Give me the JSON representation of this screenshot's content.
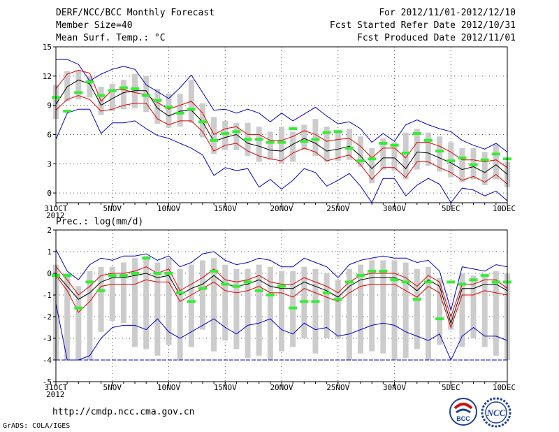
{
  "header": {
    "title": "DERF/NCC/BCC Monthly Forecast",
    "member_size": "Member Size=40",
    "variable": "Mean Surf. Temp.: °C",
    "period": "For 2012/11/01-2012/12/10",
    "start_date": "Fcst Started Refer Date 2012/10/31",
    "produced_date": "Fcst Produced Date 2012/11/01"
  },
  "footer": {
    "url": "http://cmdp.ncc.cma.gov.cn",
    "grads": "GrADS: COLA/IGES",
    "logo_bcc": "BCC",
    "logo_ncc": "NCC"
  },
  "colors": {
    "max_min": "#0000cc",
    "percentile": "#dd0000",
    "mean": "#000000",
    "box": "#cccccc",
    "marker": "#33ee33",
    "grid": "#555555"
  },
  "chart_data": [
    {
      "type": "box-ensemble",
      "title": "Mean Surf. Temp.: °C",
      "ylim": [
        -1,
        15
      ],
      "yticks": [
        0,
        3,
        6,
        9,
        12,
        15
      ],
      "xlim": [
        1,
        41
      ],
      "x_ticks": [
        {
          "day": 1,
          "label": "31OCT",
          "sub": "2012"
        },
        {
          "day": 6,
          "label": "5NOV"
        },
        {
          "day": 11,
          "label": "10NOV"
        },
        {
          "day": 16,
          "label": "15NOV"
        },
        {
          "day": 21,
          "label": "20NOV"
        },
        {
          "day": 26,
          "label": "25NOV"
        },
        {
          "day": 31,
          "label": "30NOV"
        },
        {
          "day": 36,
          "label": "5DEC"
        },
        {
          "day": 41,
          "label": "10DEC"
        }
      ],
      "series": {
        "max": [
          null,
          13.7,
          13.7,
          13.2,
          11.5,
          12.2,
          12.7,
          13,
          12.7,
          11.1,
          10.4,
          9.7,
          10.8,
          12.1,
          10.3,
          8.5,
          8.6,
          8.2,
          8.6,
          8.2,
          7.3,
          8.2,
          7.4,
          8.1,
          8.8,
          7.9,
          7.1,
          7.3,
          6.6,
          5.2,
          6.1,
          5.3,
          7.0,
          7.5,
          7.0,
          6.6,
          6.3,
          5.4,
          4.9,
          4.5,
          5.1,
          4.2
        ],
        "p_high": [
          null,
          10.7,
          12.2,
          12.6,
          12.3,
          9.4,
          10.6,
          10.6,
          10.3,
          10.1,
          9.3,
          8.6,
          9.0,
          9.4,
          8.2,
          6.0,
          6.6,
          6.8,
          6.0,
          6.0,
          5.4,
          5.4,
          5.8,
          6.4,
          6.0,
          5.3,
          5.5,
          5.6,
          4.8,
          3.6,
          4.6,
          4.6,
          3.6,
          5.2,
          5.2,
          4.8,
          4.2,
          3.4,
          3.4,
          3.2,
          3.4,
          2.6
        ],
        "mean": [
          null,
          9.1,
          10.9,
          11.6,
          11.2,
          9.0,
          9.7,
          10.3,
          10.5,
          10.5,
          8.7,
          7.9,
          8.4,
          8.5,
          7.3,
          5.3,
          5.7,
          6.0,
          5.1,
          4.8,
          4.4,
          4.3,
          5.0,
          5.6,
          5.1,
          4.3,
          4.5,
          4.8,
          3.8,
          2.5,
          3.6,
          3.6,
          2.5,
          4.2,
          4.1,
          3.6,
          3.1,
          2.4,
          2.7,
          2.1,
          2.9,
          1.9
        ],
        "p_low": [
          null,
          8.5,
          9.6,
          10.0,
          9.6,
          8.4,
          8.6,
          9.0,
          9.2,
          9.2,
          7.6,
          7.0,
          7.4,
          7.4,
          6.3,
          4.3,
          4.9,
          5.1,
          4.3,
          3.8,
          3.5,
          3.3,
          4.1,
          4.6,
          4.2,
          3.3,
          3.6,
          3.9,
          2.9,
          1.4,
          2.6,
          2.6,
          1.6,
          3.2,
          3.2,
          2.6,
          2.1,
          1.3,
          1.7,
          1.1,
          1.9,
          0.9
        ],
        "min": [
          null,
          5.5,
          8.2,
          8.6,
          8.6,
          6.1,
          7.2,
          7.2,
          7.4,
          6.6,
          5.9,
          5.6,
          5.1,
          4.6,
          3.9,
          1.8,
          2.6,
          2.3,
          2.5,
          0.6,
          1.4,
          0.4,
          1.3,
          2.5,
          2.1,
          0.7,
          1.3,
          2.0,
          0.7,
          -1.0,
          1.5,
          1.5,
          -0.3,
          0.8,
          1.5,
          0.9,
          -1.0,
          0.5,
          0.3,
          -0.3,
          0.2,
          -0.8
        ],
        "box_top": [
          null,
          11.1,
          12.5,
          12.6,
          12.0,
          10.9,
          11.2,
          11.6,
          12.2,
          12.0,
          10.7,
          10.2,
          10.2,
          11.6,
          9.2,
          7.8,
          7.4,
          7.2,
          7.2,
          6.8,
          6.3,
          6.8,
          6.3,
          7.0,
          7.6,
          6.8,
          6.2,
          6.6,
          5.8,
          4.6,
          5.6,
          5.2,
          6.2,
          6.6,
          6.2,
          5.8,
          5.2,
          4.6,
          4.6,
          4.2,
          5.0,
          3.2
        ],
        "box_bottom": [
          null,
          7.6,
          9.4,
          9.6,
          9.8,
          8.0,
          8.4,
          8.6,
          8.7,
          8.3,
          7.1,
          6.7,
          6.8,
          7.2,
          5.7,
          4.0,
          4.4,
          4.4,
          3.8,
          3.2,
          3.4,
          3.0,
          3.2,
          4.4,
          3.8,
          3.2,
          3.3,
          3.4,
          2.7,
          1.0,
          2.4,
          2.3,
          1.4,
          2.4,
          2.8,
          2.2,
          1.6,
          1.1,
          1.4,
          0.8,
          1.4,
          0.6
        ],
        "marker": [
          null,
          9.8,
          8.4,
          10.3,
          11.4,
          10.0,
          10.5,
          10.8,
          10.7,
          10.0,
          9.5,
          8.8,
          8.2,
          8.6,
          7.3,
          5.4,
          6.1,
          6.3,
          5.5,
          5.5,
          5.2,
          5.2,
          6.6,
          5.3,
          5.5,
          6.2,
          6.3,
          4.6,
          3.3,
          3.5,
          5.1,
          4.9,
          4.1,
          6.1,
          5.4,
          4.3,
          3.3,
          3.6,
          2.9,
          3.4,
          4.0,
          3.5
        ]
      }
    },
    {
      "type": "box-ensemble",
      "title": "Prec.: log(mm/d)",
      "ylim": [
        -5,
        2
      ],
      "yticks": [
        -5,
        -4,
        -3,
        -2,
        -1,
        0,
        1,
        2
      ],
      "xlim": [
        1,
        41
      ],
      "x_ticks": [
        {
          "day": 1,
          "label": "31OCT",
          "sub": "2012"
        },
        {
          "day": 6,
          "label": "5NOV"
        },
        {
          "day": 11,
          "label": "10NOV"
        },
        {
          "day": 16,
          "label": "15NOV"
        },
        {
          "day": 21,
          "label": "20NOV"
        },
        {
          "day": 26,
          "label": "25NOV"
        },
        {
          "day": 31,
          "label": "30NOV"
        },
        {
          "day": 36,
          "label": "5DEC"
        },
        {
          "day": 41,
          "label": "10DEC"
        }
      ],
      "baseline": -4,
      "series": {
        "max": [
          null,
          1.1,
          0.1,
          -0.3,
          0.4,
          0.7,
          0.6,
          0.8,
          0.8,
          0.9,
          0.6,
          0.8,
          0.3,
          0.5,
          0.9,
          1.0,
          0.6,
          0.4,
          0.5,
          0.7,
          0.6,
          0.3,
          0.3,
          0.7,
          0.5,
          0.3,
          -0.2,
          0.4,
          0.6,
          0.7,
          0.8,
          0.7,
          0.7,
          0.5,
          0.6,
          0.1,
          -1.7,
          0.3,
          0.2,
          0.1,
          0.4,
          0.3
        ],
        "p_high": [
          null,
          0.3,
          -0.3,
          -1.0,
          -0.6,
          -0.1,
          0.0,
          0.0,
          0.1,
          0.3,
          0.0,
          0.2,
          -0.8,
          -0.5,
          -0.2,
          0.2,
          -0.3,
          -0.4,
          -0.3,
          -0.1,
          -0.4,
          -0.5,
          -0.5,
          -0.2,
          -0.4,
          -0.6,
          -0.9,
          -0.4,
          -0.1,
          0.0,
          0.0,
          0.0,
          -0.2,
          -0.6,
          -0.1,
          -0.4,
          -2.0,
          -0.5,
          -0.5,
          -0.3,
          -0.3,
          -0.7
        ],
        "mean": [
          null,
          0.0,
          -0.6,
          -1.2,
          -0.9,
          -0.4,
          -0.2,
          -0.2,
          -0.1,
          0.0,
          -0.2,
          -0.1,
          -1.0,
          -0.7,
          -0.5,
          -0.1,
          -0.5,
          -0.6,
          -0.5,
          -0.3,
          -0.6,
          -0.7,
          -0.7,
          -0.4,
          -0.6,
          -0.8,
          -1.1,
          -0.6,
          -0.3,
          -0.2,
          -0.2,
          -0.2,
          -0.4,
          -0.8,
          -0.3,
          -0.6,
          -2.3,
          -0.7,
          -0.7,
          -0.5,
          -0.5,
          -0.8
        ],
        "p_low": [
          null,
          -0.1,
          -0.8,
          -1.8,
          -1.3,
          -0.6,
          -0.5,
          -0.5,
          -0.5,
          -0.3,
          -0.4,
          -0.4,
          -1.3,
          -1.0,
          -0.7,
          -0.4,
          -0.8,
          -0.9,
          -0.8,
          -0.6,
          -0.9,
          -0.9,
          -1.1,
          -0.7,
          -0.9,
          -1.1,
          -1.3,
          -0.9,
          -0.6,
          -0.5,
          -0.5,
          -0.5,
          -0.8,
          -1.1,
          -0.6,
          -0.9,
          -2.5,
          -1.0,
          -1.0,
          -0.8,
          -0.9,
          -1.0
        ],
        "min": [
          null,
          -1.4,
          -4.0,
          -4.0,
          -3.8,
          -3.0,
          -2.5,
          -2.4,
          -2.4,
          -2.6,
          -2.1,
          -2.7,
          -3.0,
          -2.7,
          -2.4,
          -2.1,
          -2.5,
          -2.8,
          -2.4,
          -2.3,
          -2.1,
          -2.6,
          -2.8,
          -2.3,
          -2.6,
          -2.5,
          -2.9,
          -2.8,
          -2.6,
          -2.4,
          -2.3,
          -2.4,
          -2.7,
          -2.9,
          -3.1,
          -2.8,
          -4.0,
          -2.9,
          -2.5,
          -2.9,
          -2.9,
          -3.1
        ],
        "box_top": [
          null,
          0.4,
          0.0,
          -0.6,
          0.1,
          0.3,
          0.3,
          0.5,
          0.7,
          0.8,
          0.5,
          0.7,
          0.2,
          0.4,
          0.6,
          0.7,
          0.4,
          0.2,
          0.2,
          0.4,
          0.3,
          0.1,
          0.1,
          0.3,
          0.2,
          0.0,
          -0.3,
          0.2,
          0.4,
          0.6,
          0.6,
          0.6,
          0.5,
          0.2,
          0.3,
          -0.2,
          -1.9,
          0.0,
          -0.1,
          -0.1,
          0.1,
          0.0
        ],
        "box_bottom": [
          null,
          -4.0,
          -4.0,
          -4.0,
          -4.0,
          -2.7,
          -2.2,
          -2.3,
          -3.4,
          -3.5,
          -3.8,
          -3.3,
          -4.0,
          -3.4,
          -2.6,
          -3.6,
          -3.1,
          -3.5,
          -3.9,
          -3.8,
          -4.0,
          -3.6,
          -3.4,
          -3.0,
          -3.7,
          -3.0,
          -3.0,
          -4.0,
          -3.7,
          -3.6,
          -3.7,
          -4.0,
          -3.9,
          -3.5,
          -4.0,
          -3.3,
          -2.6,
          -3.4,
          -3.0,
          -3.4,
          -3.8,
          -4.0
        ],
        "marker": [
          null,
          -0.1,
          -0.1,
          -1.6,
          -0.4,
          -0.8,
          -0.1,
          -0.1,
          0.0,
          0.7,
          0.0,
          0.0,
          -0.9,
          -1.3,
          -0.7,
          0.1,
          -0.5,
          -0.6,
          -0.4,
          -0.8,
          -1.0,
          -0.6,
          -1.6,
          -1.3,
          -1.3,
          -0.9,
          -1.2,
          -0.4,
          -0.1,
          0.1,
          0.1,
          -0.3,
          -0.4,
          -1.2,
          -0.4,
          -2.1,
          -0.4,
          -0.5,
          -0.3,
          -0.1,
          -0.4,
          -0.4
        ]
      }
    }
  ]
}
